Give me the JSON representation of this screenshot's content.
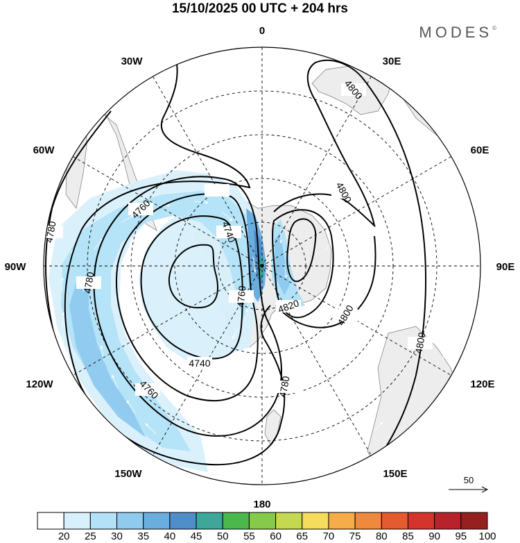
{
  "header": {
    "title": "15/10/2025  00 UTC  + 204 hrs",
    "brand": "MODES",
    "brand_mark": "©"
  },
  "map": {
    "projection": "south-polar-stereographic",
    "longitude_labels": {
      "top": "0",
      "top_right": "30E",
      "right_upper": "60E",
      "right": "90E",
      "right_lower": "120E",
      "bottom_right": "150E",
      "bottom": "180",
      "bottom_left": "150W",
      "left_lower": "120W",
      "left": "90W",
      "left_upper": "60W",
      "top_left": "30W"
    },
    "contour_labels": [
      "4800",
      "4800",
      "4800",
      "4800",
      "4780",
      "4780",
      "4760",
      "4760",
      "4760",
      "4740",
      "4740",
      "4780",
      "4820"
    ],
    "reference_vector": {
      "value": "50",
      "icon": "arrow-right-icon"
    }
  },
  "colorbar": {
    "ticks": [
      "20",
      "25",
      "30",
      "35",
      "40",
      "45",
      "50",
      "55",
      "60",
      "65",
      "70",
      "75",
      "80",
      "85",
      "90",
      "95",
      "100"
    ],
    "colors": [
      "#ffffff",
      "#d8f0fc",
      "#b3e1f7",
      "#8fcaef",
      "#6aaedf",
      "#4f8fc9",
      "#3fa69a",
      "#4cb84c",
      "#86c94b",
      "#c4d94f",
      "#f5dc5a",
      "#f4ad48",
      "#ef8a3c",
      "#e45a31",
      "#d4342c",
      "#b8232b",
      "#962020"
    ]
  }
}
